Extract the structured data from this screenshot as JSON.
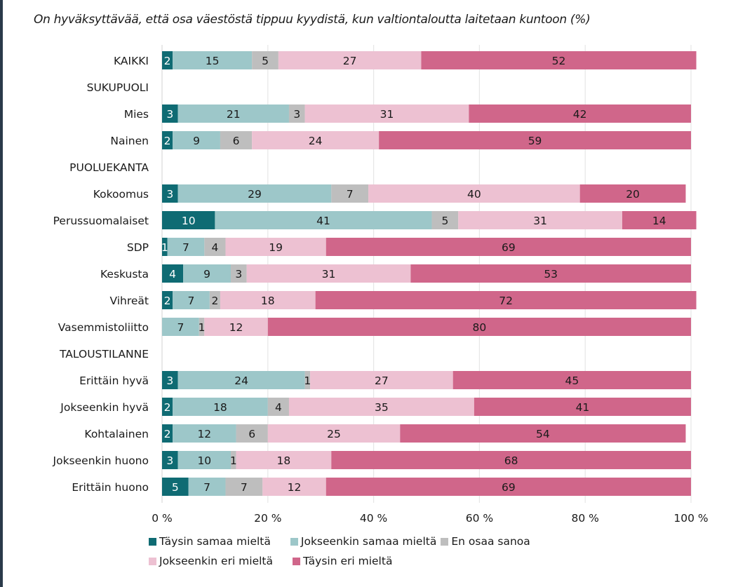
{
  "chart_data": {
    "type": "bar",
    "orientation": "horizontal",
    "stacked": true,
    "title": "On hyväksyttävää, että osa väestöstä tippuu kyydistä, kun valtiontaloutta laitetaan kuntoon (%)",
    "xlabel": "",
    "ylabel": "",
    "xlim": [
      0,
      100
    ],
    "x_ticks": [
      "0 %",
      "20 %",
      "40 %",
      "60 %",
      "80 %",
      "100 %"
    ],
    "grid": true,
    "legend_position": "bottom-left",
    "categories": [
      {
        "label": "KAIKKI",
        "header": false
      },
      {
        "label": "SUKUPUOLI",
        "header": true
      },
      {
        "label": "Mies",
        "header": false
      },
      {
        "label": "Nainen",
        "header": false
      },
      {
        "label": "PUOLUEKANTA",
        "header": true
      },
      {
        "label": "Kokoomus",
        "header": false
      },
      {
        "label": "Perussuomalaiset",
        "header": false
      },
      {
        "label": "SDP",
        "header": false
      },
      {
        "label": "Keskusta",
        "header": false
      },
      {
        "label": "Vihreät",
        "header": false
      },
      {
        "label": "Vasemmistoliitto",
        "header": false
      },
      {
        "label": "TALOUSTILANNE",
        "header": true
      },
      {
        "label": "Erittäin hyvä",
        "header": false
      },
      {
        "label": "Jokseenkin hyvä",
        "header": false
      },
      {
        "label": "Kohtalainen",
        "header": false
      },
      {
        "label": "Jokseenkin huono",
        "header": false
      },
      {
        "label": "Erittäin huono",
        "header": false
      }
    ],
    "series": [
      {
        "name": "Täysin samaa mieltä",
        "color": "#0f6b73",
        "label_color": "#ffffff",
        "values": [
          2,
          null,
          3,
          2,
          null,
          3,
          10,
          1,
          4,
          2,
          0,
          null,
          3,
          2,
          2,
          3,
          5
        ]
      },
      {
        "name": "Jokseenkin samaa mieltä",
        "color": "#9dc7c9",
        "label_color": "#1a1a1a",
        "values": [
          15,
          null,
          21,
          9,
          null,
          29,
          41,
          7,
          9,
          7,
          7,
          null,
          24,
          18,
          12,
          10,
          7
        ]
      },
      {
        "name": "En osaa sanoa",
        "color": "#bebebe",
        "label_color": "#1a1a1a",
        "values": [
          5,
          null,
          3,
          6,
          null,
          7,
          5,
          4,
          3,
          2,
          1,
          null,
          1,
          4,
          6,
          1,
          7
        ]
      },
      {
        "name": "Jokseenkin eri mieltä",
        "color": "#edc1d2",
        "label_color": "#1a1a1a",
        "values": [
          27,
          null,
          31,
          24,
          null,
          40,
          31,
          19,
          31,
          18,
          12,
          null,
          27,
          35,
          25,
          18,
          12
        ]
      },
      {
        "name": "Täysin eri mieltä",
        "color": "#d0668a",
        "label_color": "#1a1a1a",
        "values": [
          52,
          null,
          42,
          59,
          null,
          20,
          14,
          69,
          53,
          72,
          80,
          null,
          45,
          41,
          54,
          68,
          69
        ]
      }
    ]
  }
}
